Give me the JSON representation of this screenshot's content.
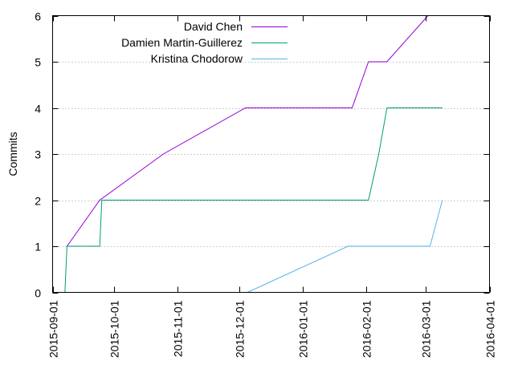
{
  "chart_data": {
    "type": "line",
    "title": "",
    "xlabel": "",
    "ylabel": "Commits",
    "xlim": [
      "2015-09-01",
      "2016-04-01"
    ],
    "ylim": [
      0,
      6
    ],
    "x_tick_labels": [
      "2015-09-01",
      "2015-10-01",
      "2015-11-01",
      "2015-12-01",
      "2016-01-01",
      "2016-02-01",
      "2016-03-01",
      "2016-04-01"
    ],
    "y_tick_labels": [
      "0",
      "1",
      "2",
      "3",
      "4",
      "5",
      "6"
    ],
    "grid": "horizontal dotted",
    "legend_position": "top-left",
    "series": [
      {
        "name": "David Chen",
        "color": "#9400d3",
        "points": [
          {
            "x": "2015-09-08",
            "y": 1
          },
          {
            "x": "2015-09-24",
            "y": 2
          },
          {
            "x": "2015-10-25",
            "y": 3
          },
          {
            "x": "2015-12-04",
            "y": 4
          },
          {
            "x": "2016-01-25",
            "y": 4
          },
          {
            "x": "2016-02-02",
            "y": 5
          },
          {
            "x": "2016-02-11",
            "y": 5
          },
          {
            "x": "2016-03-02",
            "y": 6
          }
        ]
      },
      {
        "name": "Damien Martin-Guillerez",
        "color": "#009e73",
        "points": [
          {
            "x": "2015-09-07",
            "y": 0
          },
          {
            "x": "2015-09-08",
            "y": 1
          },
          {
            "x": "2015-09-24",
            "y": 1
          },
          {
            "x": "2015-09-25",
            "y": 2
          },
          {
            "x": "2016-02-02",
            "y": 2
          },
          {
            "x": "2016-02-07",
            "y": 3
          },
          {
            "x": "2016-02-11",
            "y": 4
          },
          {
            "x": "2016-03-09",
            "y": 4
          }
        ]
      },
      {
        "name": "Kristina Chodorow",
        "color": "#56b4e9",
        "points": [
          {
            "x": "2015-12-05",
            "y": 0
          },
          {
            "x": "2016-01-23",
            "y": 1
          },
          {
            "x": "2016-03-03",
            "y": 1
          },
          {
            "x": "2016-03-09",
            "y": 2
          }
        ]
      }
    ]
  }
}
